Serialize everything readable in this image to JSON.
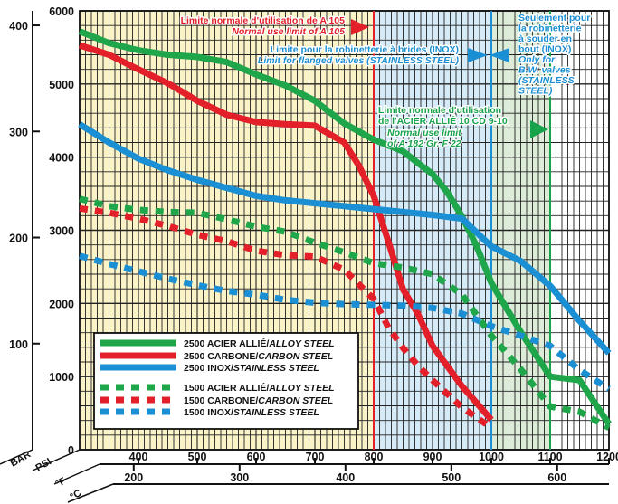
{
  "chart_data": {
    "type": "line",
    "axes": {
      "psi": {
        "label": "PSI",
        "ticks": [
          0,
          1000,
          2000,
          3000,
          4000,
          5000,
          6000
        ],
        "range": [
          0,
          6000
        ]
      },
      "bar": {
        "label": "BAR",
        "ticks": [
          100,
          200,
          300,
          400
        ]
      },
      "fahrenheit": {
        "label": "°F",
        "ticks": [
          400,
          500,
          600,
          700,
          800,
          900,
          1000,
          1100,
          1200
        ],
        "range": [
          300,
          1200
        ]
      },
      "celsius": {
        "label": "°C",
        "ticks": [
          200,
          300,
          400,
          500,
          600
        ]
      }
    },
    "zones": [
      {
        "name": "carbon-steel-range",
        "from_f": 300,
        "to_f": 800,
        "color": "#fbf3c8"
      },
      {
        "name": "inox-flanged-range",
        "from_f": 800,
        "to_f": 1000,
        "color": "#d6ebf8"
      },
      {
        "name": "alloy-range",
        "from_f": 1000,
        "to_f": 1100,
        "color": "#dcecd9"
      }
    ],
    "limits": [
      {
        "name": "a105-limit",
        "f": 800,
        "color": "#e3202a"
      },
      {
        "name": "inox-limit",
        "f": 1000,
        "color": "#1b8fd3"
      },
      {
        "name": "alloy-limit",
        "f": 1100,
        "color": "#16a34a"
      }
    ],
    "series": [
      {
        "name": "2500 ACIER ALLIÉ/ALLOY STEEL",
        "style": "solid",
        "color": "#1fa64a",
        "x": [
          300,
          350,
          400,
          450,
          500,
          550,
          600,
          650,
          700,
          750,
          800,
          850,
          875,
          900,
          925,
          950,
          975,
          1000,
          1050,
          1100,
          1150,
          1200
        ],
        "y": [
          5720,
          5560,
          5460,
          5400,
          5370,
          5300,
          5130,
          4980,
          4770,
          4460,
          4240,
          4080,
          3920,
          3770,
          3520,
          3190,
          2780,
          2280,
          1610,
          1000,
          950,
          350
        ]
      },
      {
        "name": "2500 CARBONE/CARBON STEEL",
        "style": "solid",
        "color": "#e3202a",
        "x": [
          300,
          350,
          400,
          450,
          500,
          550,
          600,
          650,
          700,
          750,
          775,
          800,
          825,
          850,
          875,
          900,
          950,
          1000
        ],
        "y": [
          5530,
          5400,
          5200,
          5010,
          4770,
          4580,
          4480,
          4450,
          4430,
          4200,
          3880,
          3470,
          2840,
          2190,
          1860,
          1420,
          870,
          410
        ]
      },
      {
        "name": "2500 INOX/STAINLESS STEEL",
        "style": "solid",
        "color": "#1b8fd3",
        "x": [
          300,
          350,
          400,
          450,
          500,
          550,
          600,
          650,
          700,
          750,
          800,
          850,
          900,
          950,
          1000,
          1050,
          1100,
          1150,
          1200
        ],
        "y": [
          4450,
          4200,
          3980,
          3820,
          3690,
          3580,
          3470,
          3410,
          3370,
          3330,
          3290,
          3250,
          3210,
          3160,
          2780,
          2580,
          2240,
          1760,
          1320
        ]
      },
      {
        "name": "1500 ACIER ALLIÉ/ALLOY STEEL",
        "style": "dashed",
        "color": "#1fa64a",
        "x": [
          300,
          350,
          400,
          450,
          500,
          550,
          600,
          650,
          700,
          750,
          800,
          850,
          900,
          950,
          1000,
          1050,
          1100,
          1150,
          1200
        ],
        "y": [
          3430,
          3330,
          3280,
          3250,
          3240,
          3150,
          3050,
          2980,
          2830,
          2700,
          2550,
          2490,
          2400,
          2120,
          1560,
          1100,
          590,
          520,
          300
        ]
      },
      {
        "name": "1500 CARBONE/CARBON STEEL",
        "style": "dashed",
        "color": "#e3202a",
        "x": [
          300,
          350,
          400,
          450,
          500,
          550,
          600,
          650,
          700,
          750,
          800,
          825,
          850,
          875,
          900,
          950,
          1000
        ],
        "y": [
          3300,
          3240,
          3160,
          3060,
          2940,
          2850,
          2720,
          2660,
          2640,
          2460,
          2060,
          1670,
          1390,
          1150,
          950,
          580,
          300
        ]
      },
      {
        "name": "1500 INOX/STAINLESS STEEL",
        "style": "dashed",
        "color": "#1b8fd3",
        "x": [
          300,
          350,
          400,
          450,
          500,
          550,
          600,
          650,
          700,
          750,
          800,
          850,
          900,
          950,
          1000,
          1050,
          1100,
          1150,
          1200
        ],
        "y": [
          2650,
          2540,
          2440,
          2340,
          2250,
          2170,
          2120,
          2050,
          2010,
          1990,
          1980,
          1970,
          1940,
          1860,
          1690,
          1560,
          1420,
          1090,
          830
        ]
      }
    ],
    "legend_position": "bottom-left",
    "annotations": {
      "a105_fr": "Limite normale d'utilisation de A 105",
      "a105_en": "Normal use limit of A 105",
      "flanged_fr": "Limite pour la robinetterie à brides (INOX)",
      "flanged_en": "Limit for flanged valves (STAINLESS STEEL)",
      "weld_fr_1": "Seulement pour",
      "weld_fr_2": "la robinetterie",
      "weld_fr_3": "à souder en",
      "weld_fr_4": "bout (INOX)",
      "weld_en_1": "Only for",
      "weld_en_2": "B.W. valves",
      "weld_en_3": "(STAINLESS",
      "weld_en_4": "STEEL)",
      "alloy_fr_1": "Limite normale d'utilisation",
      "alloy_fr_2": "de l'ACIER ALLIÉ 10 CD 9-10",
      "alloy_en_1": "Normal use limit",
      "alloy_en_2": "of A 182 Gr. F 22"
    }
  }
}
